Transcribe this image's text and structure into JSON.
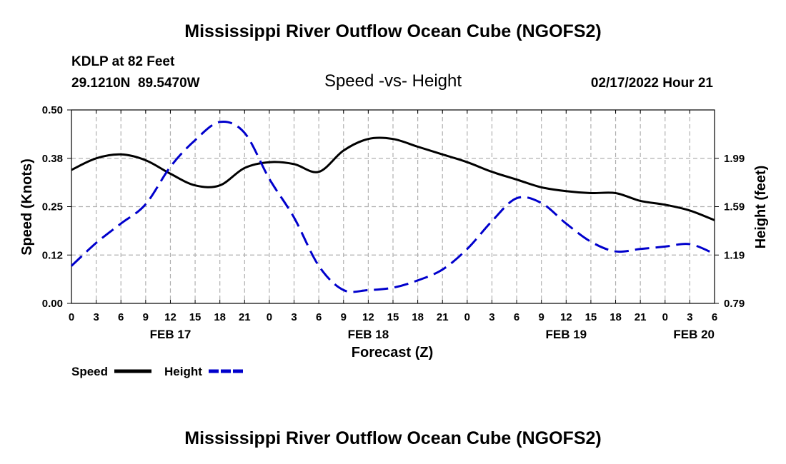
{
  "page": {
    "title": "Mississippi River Outflow Ocean Cube (NGOFS2)",
    "station": "KDLP at 82 Feet",
    "coords": "29.1210N  89.5470W",
    "subtitle": "Speed -vs- Height",
    "datetime": "02/17/2022 Hour 21",
    "footer_title": "Mississippi River Outflow Ocean Cube (NGOFS2)"
  },
  "legend": {
    "speed_label": "Speed",
    "height_label": "Height"
  },
  "colors": {
    "speed": "#000000",
    "height": "#0000cc",
    "grid": "#b0b0b0"
  },
  "chart_data": {
    "type": "line",
    "title": "Speed -vs- Height",
    "xlabel": "Forecast (Z)",
    "ylabel": "Speed (Knots)",
    "y2label": "Height (feet)",
    "x_range_hours": [
      0,
      78
    ],
    "x_tick_hours": [
      0,
      3,
      6,
      9,
      12,
      15,
      18,
      21,
      24,
      27,
      30,
      33,
      36,
      39,
      42,
      45,
      48,
      51,
      54,
      57,
      60,
      63,
      66,
      69,
      72,
      75,
      78
    ],
    "x_tick_labels": [
      "0",
      "3",
      "6",
      "9",
      "12",
      "15",
      "18",
      "21",
      "0",
      "3",
      "6",
      "9",
      "12",
      "15",
      "18",
      "21",
      "0",
      "3",
      "6",
      "9",
      "12",
      "15",
      "18",
      "21",
      "0",
      "3",
      "6"
    ],
    "date_labels": [
      {
        "label": "FEB 17",
        "hour": 12
      },
      {
        "label": "FEB 18",
        "hour": 36
      },
      {
        "label": "FEB 19",
        "hour": 60
      },
      {
        "label": "FEB 20",
        "hour": 78
      }
    ],
    "ylim": [
      0,
      0.5
    ],
    "y_ticks": [
      0.0,
      0.125,
      0.25,
      0.375,
      0.5
    ],
    "y_tick_labels": [
      "0.00",
      "0.12",
      "0.25",
      "0.38",
      "0.50"
    ],
    "y2lim": [
      0.79,
      2.39
    ],
    "y2_ticks": [
      0.79,
      1.19,
      1.59,
      1.99
    ],
    "y2_tick_labels": [
      "0.79",
      "1.19",
      "1.59",
      "1.99"
    ],
    "series": [
      {
        "name": "Speed",
        "axis": "left",
        "style": "solid",
        "x": [
          0,
          3,
          6,
          9,
          12,
          15,
          18,
          21,
          24,
          27,
          30,
          33,
          36,
          39,
          42,
          45,
          48,
          51,
          54,
          57,
          60,
          63,
          66,
          69,
          72,
          75,
          78
        ],
        "values": [
          0.345,
          0.375,
          0.385,
          0.37,
          0.335,
          0.305,
          0.305,
          0.35,
          0.365,
          0.36,
          0.34,
          0.395,
          0.425,
          0.425,
          0.405,
          0.385,
          0.365,
          0.34,
          0.32,
          0.3,
          0.29,
          0.285,
          0.285,
          0.265,
          0.255,
          0.24,
          0.215
        ]
      },
      {
        "name": "Height",
        "axis": "right",
        "style": "dashed",
        "x": [
          0,
          3,
          6,
          9,
          12,
          15,
          18,
          21,
          24,
          27,
          30,
          33,
          36,
          39,
          42,
          45,
          48,
          51,
          54,
          57,
          60,
          63,
          66,
          69,
          72,
          75,
          78
        ],
        "values": [
          1.1,
          1.29,
          1.45,
          1.61,
          1.92,
          2.14,
          2.29,
          2.2,
          1.82,
          1.5,
          1.1,
          0.9,
          0.9,
          0.92,
          0.98,
          1.07,
          1.24,
          1.47,
          1.66,
          1.62,
          1.45,
          1.3,
          1.22,
          1.24,
          1.26,
          1.28,
          1.2
        ]
      }
    ]
  }
}
